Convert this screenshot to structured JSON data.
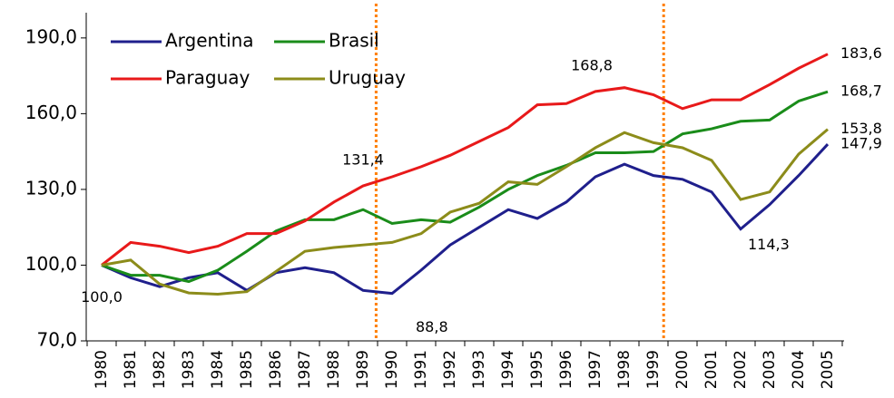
{
  "chart_data": {
    "type": "line",
    "categories": [
      "1980",
      "1981",
      "1982",
      "1983",
      "1984",
      "1985",
      "1986",
      "1987",
      "1988",
      "1989",
      "1990",
      "1991",
      "1992",
      "1993",
      "1994",
      "1995",
      "1996",
      "1997",
      "1998",
      "1999",
      "2000",
      "2001",
      "2002",
      "2003",
      "2004",
      "2005"
    ],
    "series": [
      {
        "name": "Argentina",
        "color": "#1f1f8c",
        "values": [
          100,
          95,
          91.5,
          95,
          97,
          90,
          97,
          99,
          97,
          90,
          88.8,
          98,
          108,
          115,
          122,
          118.5,
          125,
          135,
          140,
          135.5,
          134,
          129,
          114.3,
          124,
          135.5,
          147.9
        ],
        "value_labels": [
          "100,0",
          null,
          null,
          null,
          null,
          null,
          null,
          null,
          null,
          null,
          "88,8",
          null,
          null,
          null,
          null,
          null,
          null,
          null,
          null,
          null,
          null,
          null,
          "114,3",
          null,
          null,
          "147,9"
        ]
      },
      {
        "name": "Brasil",
        "color": "#1a8c1a",
        "values": [
          100,
          96,
          96,
          93.5,
          98,
          105.5,
          113.5,
          118,
          118,
          122,
          116.5,
          118,
          117,
          123,
          130,
          135.5,
          139.5,
          144.5,
          144.5,
          145,
          152,
          154,
          157,
          157.5,
          165,
          168.7
        ],
        "value_labels": [
          null,
          null,
          null,
          null,
          null,
          null,
          null,
          null,
          null,
          null,
          null,
          null,
          null,
          null,
          null,
          null,
          null,
          null,
          null,
          null,
          null,
          null,
          null,
          null,
          null,
          "168,7"
        ]
      },
      {
        "name": "Paraguay",
        "color": "#e8191a",
        "values": [
          100,
          109,
          107.5,
          105,
          107.5,
          112.5,
          112.5,
          117.5,
          125,
          131.4,
          135,
          139,
          143.5,
          149,
          154.5,
          163.5,
          164,
          168.8,
          170.3,
          167.5,
          162,
          165.5,
          165.5,
          171.5,
          178,
          183.6
        ],
        "value_labels": [
          null,
          null,
          null,
          null,
          null,
          null,
          null,
          null,
          null,
          "131,4",
          null,
          null,
          null,
          null,
          null,
          null,
          null,
          "168,8",
          null,
          null,
          null,
          null,
          null,
          null,
          null,
          "183,6"
        ]
      },
      {
        "name": "Uruguay",
        "color": "#8c8c1a",
        "values": [
          100,
          102,
          92.5,
          89,
          88.5,
          89.5,
          97.5,
          105.5,
          107,
          108,
          109,
          112.5,
          121,
          124.5,
          133,
          132,
          139,
          146.5,
          152.5,
          148.5,
          146.5,
          141.5,
          126,
          129,
          144,
          153.8
        ],
        "value_labels": [
          null,
          null,
          null,
          null,
          null,
          null,
          null,
          null,
          null,
          null,
          null,
          null,
          null,
          null,
          null,
          null,
          null,
          null,
          null,
          null,
          null,
          null,
          null,
          null,
          null,
          "153,8"
        ]
      }
    ],
    "ylim": [
      70,
      200
    ],
    "yticks": [
      {
        "value": 70,
        "label": "70,0"
      },
      {
        "value": 100,
        "label": "100,0"
      },
      {
        "value": 130,
        "label": "130,0"
      },
      {
        "value": 160,
        "label": "160,0"
      },
      {
        "value": 190,
        "label": "190,0"
      }
    ],
    "vlines": [
      9.45,
      19.35
    ],
    "legend": "upper-left"
  }
}
